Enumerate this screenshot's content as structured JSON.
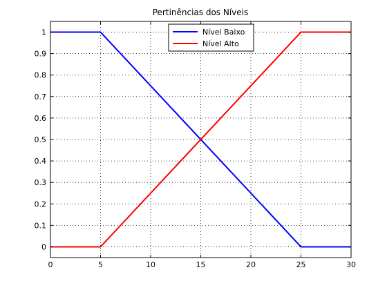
{
  "chart_data": {
    "type": "line",
    "title": "Pertinências dos Níveis",
    "xlabel": "",
    "ylabel": "",
    "xlim": [
      0,
      30
    ],
    "ylim": [
      -0.05,
      1.05
    ],
    "xticks": [
      0,
      5,
      10,
      15,
      20,
      25,
      30
    ],
    "yticks": [
      0,
      0.1,
      0.2,
      0.3,
      0.4,
      0.5,
      0.6,
      0.7,
      0.8,
      0.9,
      1
    ],
    "xtick_labels": [
      "0",
      "5",
      "10",
      "15",
      "20",
      "25",
      "30"
    ],
    "ytick_labels": [
      "0",
      "0.1",
      "0.2",
      "0.3",
      "0.4",
      "0.5",
      "0.6",
      "0.7",
      "0.8",
      "0.9",
      "1"
    ],
    "grid": true,
    "legend_position": "top-right",
    "series": [
      {
        "name": "Nível Baixo",
        "color": "#0000ff",
        "x": [
          0,
          5,
          25,
          30
        ],
        "y": [
          1,
          1,
          0,
          0
        ]
      },
      {
        "name": "Nível Alto",
        "color": "#ff0000",
        "x": [
          0,
          5,
          25,
          30
        ],
        "y": [
          0,
          0,
          1,
          1
        ]
      }
    ]
  }
}
